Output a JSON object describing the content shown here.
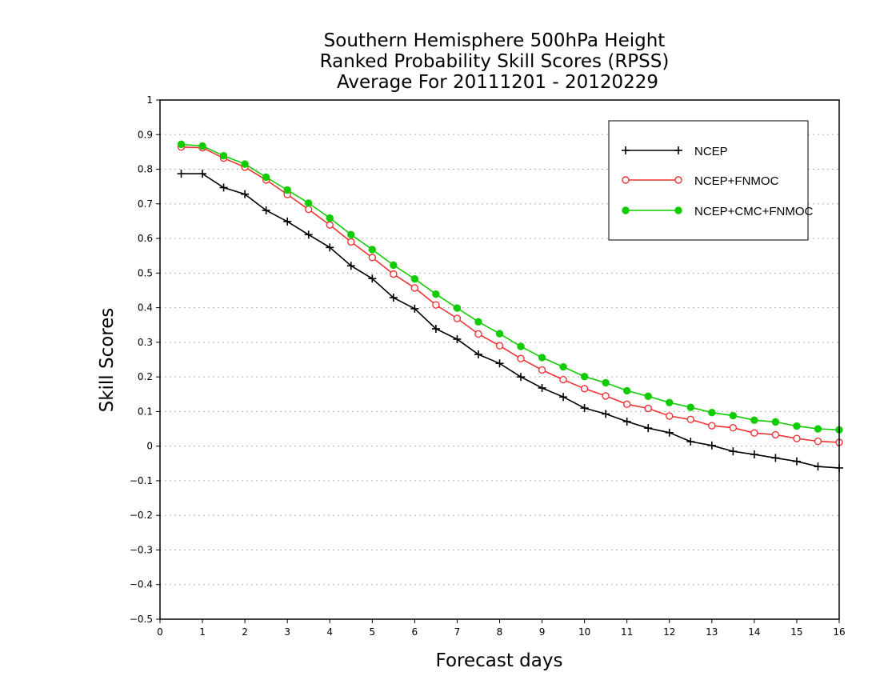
{
  "chart_data": {
    "type": "line",
    "title": [
      "Southern Hemisphere 500hPa Height",
      "Ranked Probability Skill Scores (RPSS)",
      "Average For 20111201 - 20120229"
    ],
    "xlabel": "Forecast days",
    "ylabel": "Skill Scores",
    "xlim": [
      0,
      16
    ],
    "ylim": [
      -0.5,
      1
    ],
    "xticks": [
      0,
      1,
      2,
      3,
      4,
      5,
      6,
      7,
      8,
      9,
      10,
      11,
      12,
      13,
      14,
      15,
      16
    ],
    "yticks": [
      -0.5,
      -0.4,
      -0.3,
      -0.2,
      -0.1,
      0,
      0.1,
      0.2,
      0.3,
      0.4,
      0.5,
      0.6,
      0.7,
      0.8,
      0.9,
      1
    ],
    "ytick_labels": [
      "−0.5",
      "−0.4",
      "−0.3",
      "−0.2",
      "−0.1",
      "0",
      "0.1",
      "0.2",
      "0.3",
      "0.4",
      "0.5",
      "0.6",
      "0.7",
      "0.8",
      "0.9",
      "1"
    ],
    "grid": "horizontal dotted",
    "legend_position": "top-right",
    "x": [
      0.5,
      1,
      1.5,
      2,
      2.5,
      3,
      3.5,
      4,
      4.5,
      5,
      5.5,
      6,
      6.5,
      7,
      7.5,
      8,
      8.5,
      9,
      9.5,
      10,
      10.5,
      11,
      11.5,
      12,
      12.5,
      13,
      13.5,
      14,
      14.5,
      15,
      15.5,
      16
    ],
    "series": [
      {
        "name": "NCEP",
        "color": "#000000",
        "marker": "plus",
        "values": [
          0.787,
          0.787,
          0.747,
          0.728,
          0.681,
          0.649,
          0.611,
          0.574,
          0.521,
          0.484,
          0.429,
          0.397,
          0.339,
          0.309,
          0.265,
          0.239,
          0.2,
          0.168,
          0.142,
          0.11,
          0.093,
          0.071,
          0.052,
          0.039,
          0.013,
          0.002,
          -0.015,
          -0.024,
          -0.034,
          -0.044,
          -0.059,
          -0.063
        ]
      },
      {
        "name": "NCEP+FNMOC",
        "color": "#ee3333",
        "marker": "open-circle",
        "values": [
          0.864,
          0.862,
          0.832,
          0.806,
          0.769,
          0.727,
          0.684,
          0.639,
          0.59,
          0.545,
          0.497,
          0.457,
          0.408,
          0.369,
          0.324,
          0.29,
          0.253,
          0.22,
          0.192,
          0.166,
          0.145,
          0.121,
          0.109,
          0.087,
          0.077,
          0.059,
          0.053,
          0.038,
          0.033,
          0.022,
          0.014,
          0.011
        ]
      },
      {
        "name": "NCEP+CMC+FNMOC",
        "color": "#11cc00",
        "marker": "filled-circle",
        "values": [
          0.872,
          0.867,
          0.839,
          0.815,
          0.777,
          0.74,
          0.702,
          0.659,
          0.611,
          0.568,
          0.523,
          0.483,
          0.439,
          0.399,
          0.359,
          0.325,
          0.288,
          0.256,
          0.229,
          0.201,
          0.183,
          0.16,
          0.144,
          0.126,
          0.112,
          0.097,
          0.088,
          0.075,
          0.07,
          0.058,
          0.05,
          0.047
        ]
      }
    ]
  }
}
